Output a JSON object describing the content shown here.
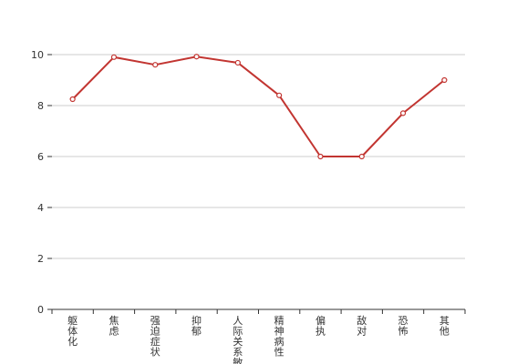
{
  "chart_data": {
    "type": "line",
    "title": "",
    "xlabel": "",
    "ylabel": "",
    "categories": [
      "躯体化",
      "焦虑",
      "强迫症状",
      "抑郁",
      "人际关系敏感",
      "精神病性",
      "偏执",
      "敌对",
      "恐怖",
      "其他"
    ],
    "series": [
      {
        "values": [
          8.25,
          9.9,
          9.6,
          9.92,
          9.68,
          8.4,
          6.0,
          6.0,
          7.7,
          9.0
        ]
      }
    ],
    "ylim": [
      0,
      10
    ],
    "yticks": [
      0,
      2,
      4,
      6,
      8,
      10
    ],
    "grid": true,
    "colors": {
      "line": "#c23531",
      "grid": "#cccccc",
      "axis": "#333333"
    }
  }
}
